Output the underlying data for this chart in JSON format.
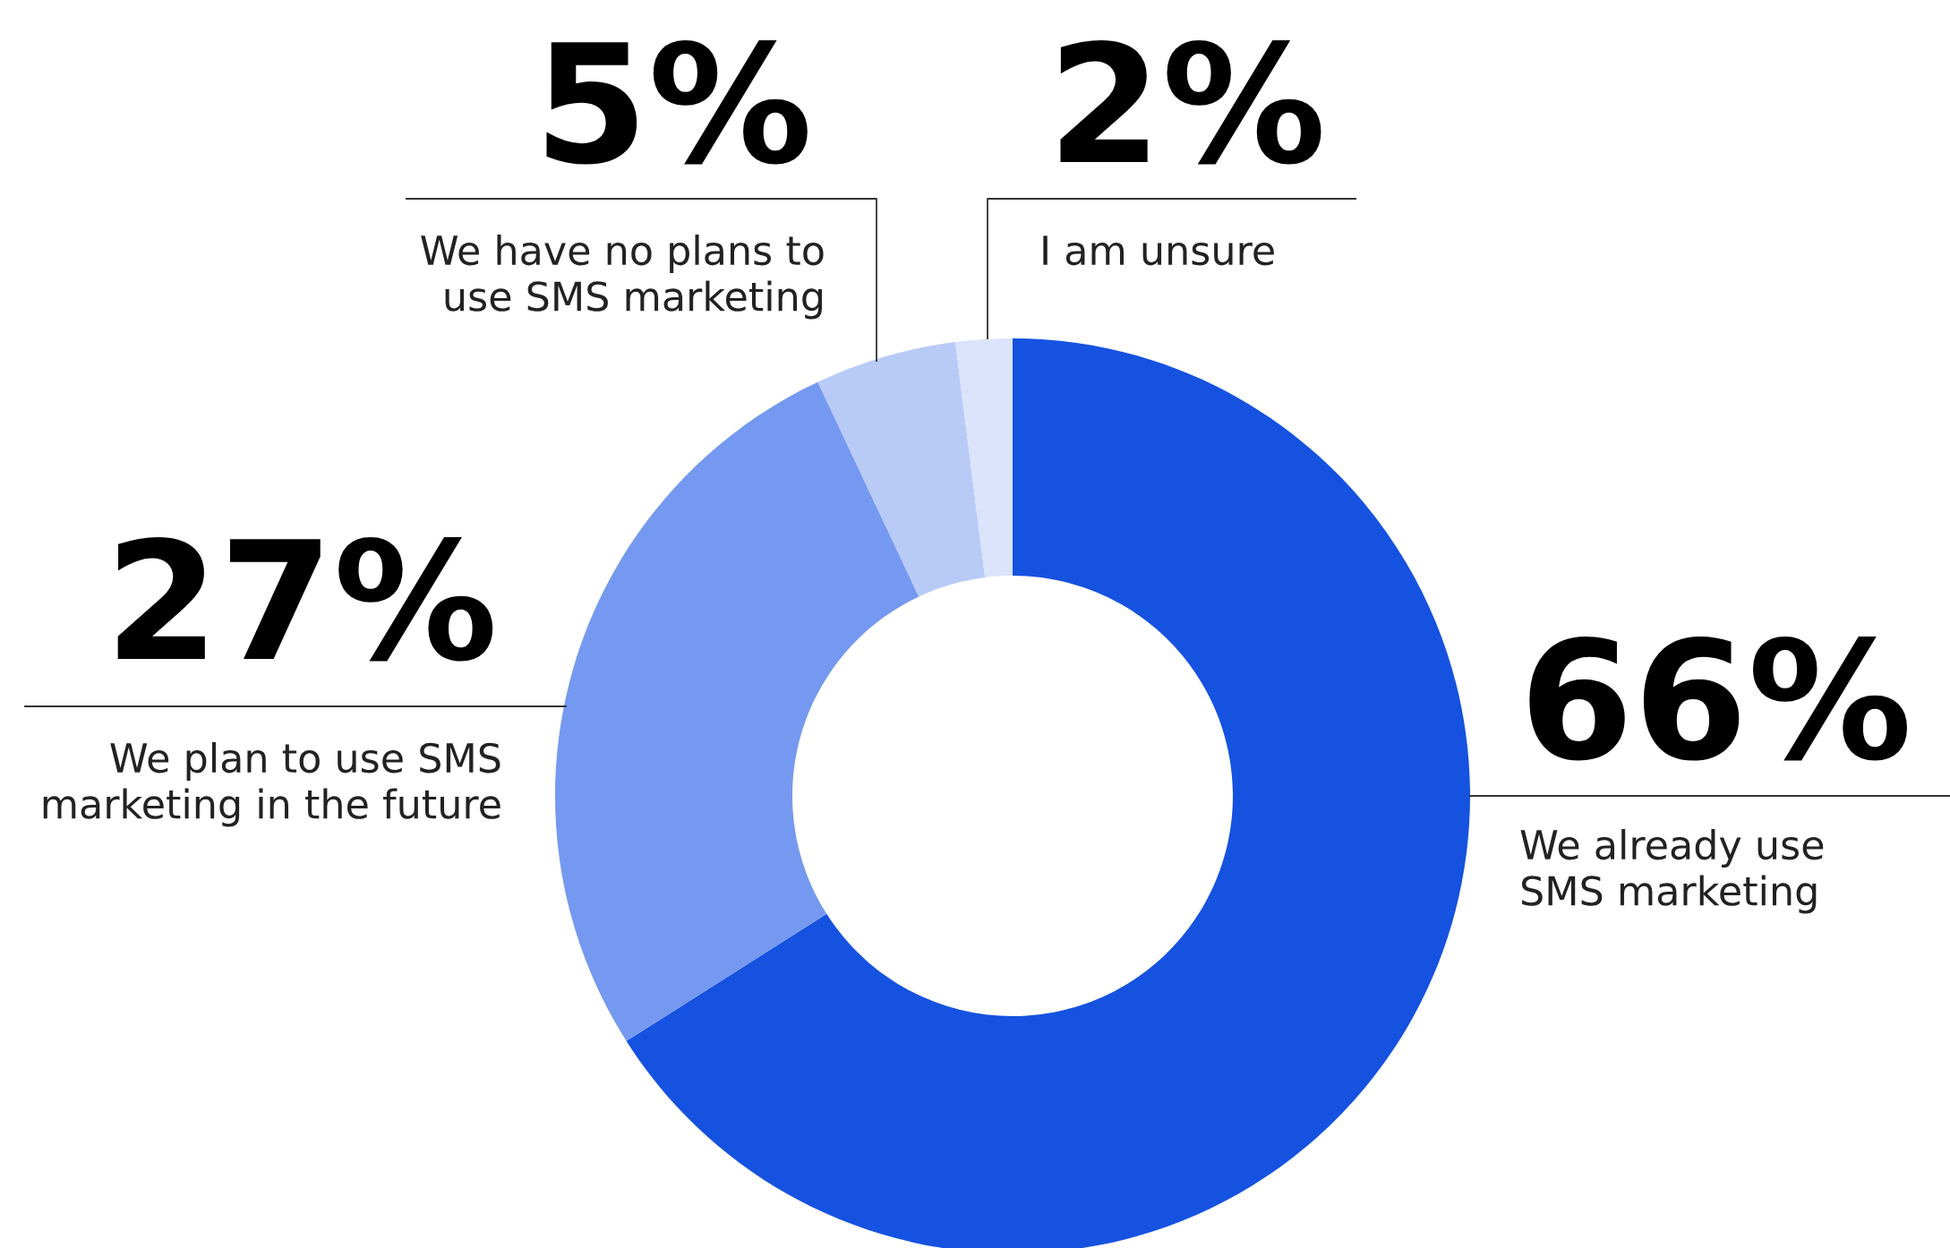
{
  "chart_data": {
    "type": "donut",
    "categories": [
      "We already use SMS marketing",
      "We plan to use SMS marketing in the future",
      "We have no plans to use SMS marketing",
      "I am unsure"
    ],
    "values": [
      66,
      27,
      5,
      2
    ],
    "value_labels": [
      "66%",
      "27%",
      "5%",
      "2%"
    ],
    "colors": [
      "#1652e0",
      "#7599f0",
      "#b8cbf7",
      "#dce4fb"
    ],
    "legend": false
  }
}
